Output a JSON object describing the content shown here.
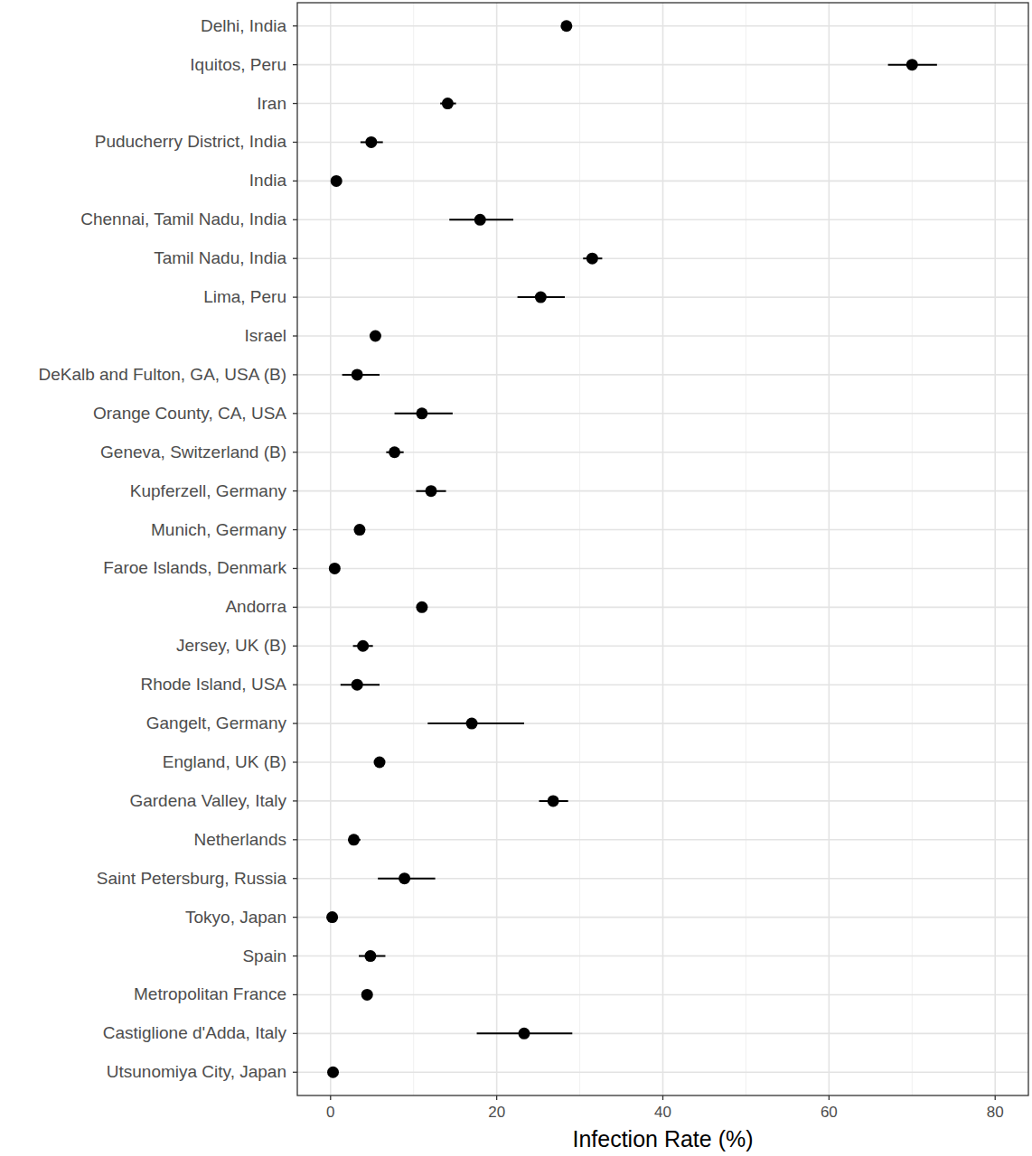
{
  "chart_data": {
    "type": "dot",
    "orientation": "horizontal",
    "grid": true,
    "x_label": "Infection Rate (%)",
    "categories": [
      "Delhi, India",
      "Iquitos, Peru",
      "Iran",
      "Puducherry District, India",
      "India",
      "Chennai, Tamil Nadu, India",
      "Tamil Nadu, India",
      "Lima, Peru",
      "Israel",
      "DeKalb and Fulton, GA, USA (B)",
      "Orange County, CA, USA",
      "Geneva, Switzerland (B)",
      "Kupferzell, Germany",
      "Munich, Germany",
      "Faroe Islands, Denmark",
      "Andorra",
      "Jersey, UK (B)",
      "Rhode Island, USA",
      "Gangelt, Germany",
      "England, UK (B)",
      "Gardena Valley, Italy",
      "Netherlands",
      "Saint Petersburg, Russia",
      "Tokyo, Japan",
      "Spain",
      "Metropolitan France",
      "Castiglione d'Adda, Italy",
      "Utsunomiya City, Japan"
    ],
    "values": [
      28.4,
      70.0,
      14.1,
      4.9,
      0.7,
      18.0,
      31.5,
      25.3,
      5.4,
      3.2,
      11.0,
      7.7,
      12.1,
      3.5,
      0.5,
      11.0,
      3.9,
      3.2,
      17.0,
      5.9,
      26.8,
      2.8,
      8.9,
      0.2,
      4.8,
      4.4,
      23.3,
      0.3
    ],
    "ci_lower": [
      null,
      67.1,
      13.2,
      3.6,
      null,
      14.3,
      30.4,
      22.5,
      null,
      1.4,
      7.7,
      6.7,
      10.3,
      null,
      null,
      null,
      2.7,
      1.2,
      11.7,
      null,
      25.1,
      2.1,
      5.7,
      null,
      3.4,
      null,
      17.6,
      null
    ],
    "ci_upper": [
      null,
      73.0,
      15.1,
      6.3,
      null,
      22.0,
      32.7,
      28.2,
      null,
      5.9,
      14.7,
      8.8,
      13.9,
      null,
      null,
      null,
      5.1,
      5.9,
      23.3,
      null,
      28.6,
      3.6,
      12.6,
      null,
      6.6,
      null,
      29.1,
      null
    ],
    "color": "#000000",
    "marker": "circle",
    "xlim": [
      -4,
      84
    ],
    "xticks": [
      0,
      20,
      40,
      60,
      80
    ]
  }
}
